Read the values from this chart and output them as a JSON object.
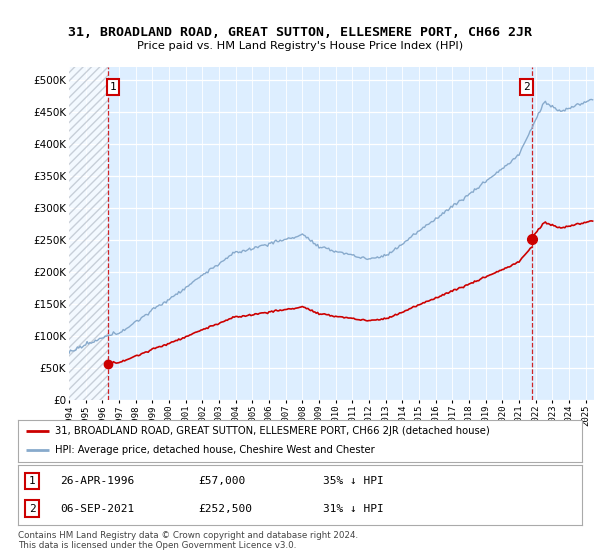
{
  "title": "31, BROADLAND ROAD, GREAT SUTTON, ELLESMERE PORT, CH66 2JR",
  "subtitle": "Price paid vs. HM Land Registry's House Price Index (HPI)",
  "bg_color": "#ffffff",
  "plot_bg_color": "#ddeeff",
  "grid_color": "#c8d8e8",
  "red_line_color": "#cc0000",
  "blue_line_color": "#88aacc",
  "sale1_date": "26-APR-1996",
  "sale1_price": 57000,
  "sale1_hpi_pct": "35% ↓ HPI",
  "sale2_date": "06-SEP-2021",
  "sale2_price": 252500,
  "sale2_hpi_pct": "31% ↓ HPI",
  "legend_red": "31, BROADLAND ROAD, GREAT SUTTON, ELLESMERE PORT, CH66 2JR (detached house)",
  "legend_blue": "HPI: Average price, detached house, Cheshire West and Chester",
  "footer": "Contains HM Land Registry data © Crown copyright and database right 2024.\nThis data is licensed under the Open Government Licence v3.0.",
  "ylim": [
    0,
    520000
  ],
  "yticks": [
    0,
    50000,
    100000,
    150000,
    200000,
    250000,
    300000,
    350000,
    400000,
    450000,
    500000
  ]
}
